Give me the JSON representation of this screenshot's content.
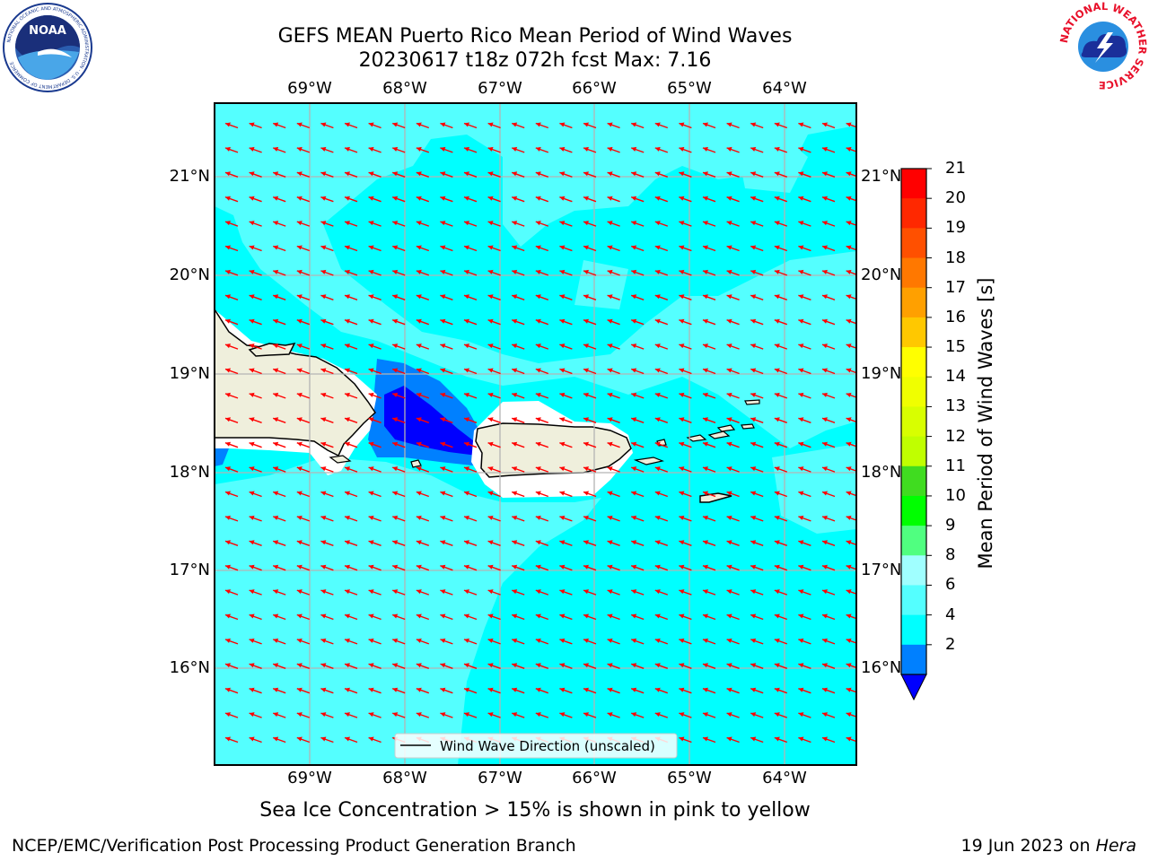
{
  "header": {
    "title_line1": "GEFS MEAN Puerto Rico Mean Period of Wind Waves",
    "title_line2": "20230617 t18z 072h fcst   Max: 7.16"
  },
  "logos": {
    "left": {
      "name": "noaa-logo",
      "text": "NOAA",
      "ring_text": "NATIONAL OCEANIC AND ATMOSPHERIC ADMINISTRATION · U.S. DEPARTMENT OF COMMERCE"
    },
    "right": {
      "name": "nws-logo",
      "ring_text": "NATIONAL WEATHER SERVICE"
    }
  },
  "map": {
    "lon_labels": [
      "69°W",
      "68°W",
      "67°W",
      "66°W",
      "65°W",
      "64°W"
    ],
    "lat_labels": [
      "21°N",
      "20°N",
      "19°N",
      "18°N",
      "17°N",
      "16°N"
    ],
    "legend_label": "Wind Wave Direction (unscaled)",
    "colors": {
      "ocean_base": "#00ffff",
      "ocean_light": "#54ffff",
      "band_2_4": "#0080ff",
      "band_below_2": "#0000ff",
      "land": "#efefdc",
      "arrow": "#ff0000",
      "grid": "#b4b4b4"
    }
  },
  "colorbar": {
    "label": "Mean Period of Wind Waves [s]",
    "ticks": [
      "21",
      "20",
      "19",
      "18",
      "17",
      "16",
      "15",
      "14",
      "13",
      "12",
      "11",
      "10",
      "9",
      "8",
      "6",
      "4",
      "2"
    ],
    "colors": [
      "#ff0000",
      "#ff2800",
      "#ff5000",
      "#ff7800",
      "#ffa000",
      "#ffc800",
      "#ffff00",
      "#f0ff00",
      "#d8ff00",
      "#c0ff00",
      "#40dc20",
      "#00ff00",
      "#50ff80",
      "#a0ffff",
      "#54ffff",
      "#00ffff",
      "#0080ff"
    ],
    "under_color": "#0000ff"
  },
  "footer": {
    "note": "Sea Ice Concentration > 15% is shown in pink to yellow",
    "credit": "NCEP/EMC/Verification Post Processing Product Generation Branch",
    "date": "19 Jun 2023 on ",
    "machine": "Hera"
  }
}
